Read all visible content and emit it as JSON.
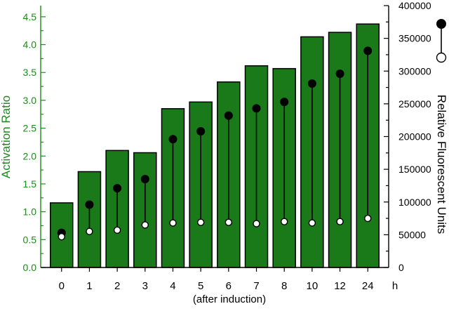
{
  "chart_data": {
    "type": "bar",
    "categories": [
      "0",
      "1",
      "2",
      "3",
      "4",
      "5",
      "6",
      "7",
      "8",
      "10",
      "12",
      "24"
    ],
    "x_unit": "h",
    "xlabel": "(after induction)",
    "ylabel_left": "Activation Ratio",
    "ylabel_right": "Relative Fluorescent Units",
    "ylim_left": [
      0,
      4.7
    ],
    "ylim_right": [
      0,
      400000
    ],
    "left_ticks": [
      "0.0",
      "0.5",
      "1.0",
      "1.5",
      "2.0",
      "2.5",
      "3.0",
      "3.5",
      "4.0",
      "4.5"
    ],
    "right_ticks": [
      "0",
      "50000",
      "100000",
      "150000",
      "200000",
      "250000",
      "300000",
      "350000",
      "400000"
    ],
    "grid": false,
    "legend_position": "right",
    "colors": {
      "bars": "#1a7a1a",
      "bar_edge": "#000000",
      "left_axis": "#1a8c1a",
      "right_axis": "#000000",
      "filled_marker": "#000000",
      "open_marker": "#ffffff"
    },
    "series": [
      {
        "values": [
          1.16,
          1.72,
          2.1,
          2.06,
          2.85,
          2.97,
          3.33,
          3.62,
          3.57,
          4.14,
          4.22,
          4.37
        ]
      },
      {
        "values": [
          53000,
          96000,
          121000,
          135000,
          196000,
          208000,
          232000,
          243000,
          253000,
          281000,
          296000,
          331000
        ]
      },
      {
        "values": [
          47000,
          55000,
          57000,
          65000,
          68000,
          69000,
          69000,
          67000,
          70000,
          68000,
          70000,
          75000
        ]
      }
    ]
  }
}
